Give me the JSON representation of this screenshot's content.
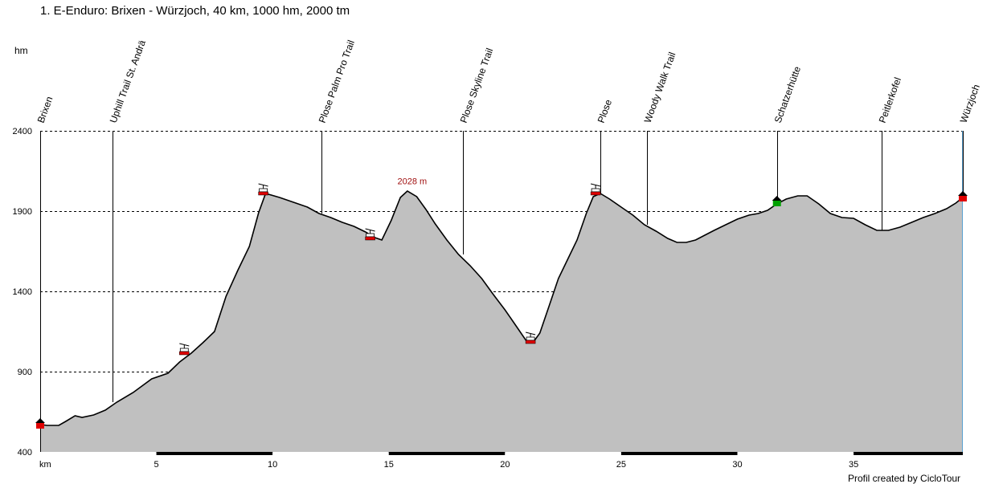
{
  "chart_data": {
    "type": "area",
    "title": "1. E-Enduro: Brixen - Würzjoch, 40 km, 1000 hm, 2000 tm",
    "ylabel": "hm",
    "xlabel": "km",
    "ylim": [
      400,
      2400
    ],
    "xlim": [
      0,
      39.7
    ],
    "y_ticks": [
      400,
      900,
      1400,
      1900,
      2400
    ],
    "x_ticks": [
      5,
      10,
      15,
      20,
      25,
      30,
      35
    ],
    "grid": true,
    "fill_color": "#c0c0c0",
    "line_color": "#000000",
    "x": [
      0,
      0.3,
      0.8,
      1.1,
      1.5,
      1.8,
      2.3,
      2.8,
      3.3,
      4.0,
      4.8,
      5.5,
      6.0,
      6.5,
      7.0,
      7.5,
      8.0,
      8.5,
      9.0,
      9.4,
      9.7,
      10.3,
      11.0,
      11.5,
      12.0,
      12.5,
      13.0,
      13.5,
      14.0,
      14.4,
      14.7,
      15.1,
      15.5,
      15.8,
      16.2,
      16.6,
      17.0,
      17.5,
      18.0,
      18.5,
      19.0,
      19.5,
      20.0,
      20.5,
      20.9,
      21.2,
      21.5,
      21.9,
      22.3,
      22.7,
      23.1,
      23.5,
      23.8,
      24.1,
      24.5,
      25.0,
      25.5,
      26.0,
      26.5,
      27.0,
      27.4,
      27.8,
      28.2,
      28.6,
      29.0,
      29.5,
      30.0,
      30.5,
      30.9,
      31.3,
      31.7,
      32.1,
      32.6,
      33.0,
      33.5,
      34.0,
      34.5,
      35.0,
      35.5,
      36.0,
      36.5,
      37.0,
      37.5,
      38.0,
      38.5,
      39.0,
      39.4,
      39.7
    ],
    "values": [
      570,
      565,
      565,
      590,
      625,
      615,
      630,
      660,
      710,
      770,
      855,
      890,
      960,
      1015,
      1080,
      1150,
      1370,
      1530,
      1680,
      1890,
      2010,
      1985,
      1950,
      1925,
      1885,
      1860,
      1830,
      1805,
      1770,
      1735,
      1720,
      1840,
      1985,
      2025,
      1990,
      1910,
      1820,
      1720,
      1630,
      1560,
      1480,
      1380,
      1285,
      1180,
      1095,
      1080,
      1140,
      1310,
      1480,
      1600,
      1720,
      1885,
      1990,
      2010,
      1975,
      1925,
      1875,
      1815,
      1775,
      1730,
      1705,
      1705,
      1720,
      1750,
      1780,
      1815,
      1850,
      1875,
      1885,
      1905,
      1945,
      1975,
      1995,
      1995,
      1945,
      1885,
      1860,
      1855,
      1815,
      1780,
      1780,
      1800,
      1830,
      1860,
      1885,
      1915,
      1950,
      1985
    ],
    "points_of_interest": [
      {
        "label": "Brixen",
        "km": 0
      },
      {
        "label": "Uphill Trail St. Andrä",
        "km": 3.1
      },
      {
        "label": "Plose Palm Pro Trail",
        "km": 12.1
      },
      {
        "label": "Plose Skyline Trail",
        "km": 18.2
      },
      {
        "label": "Plose",
        "km": 24.1
      },
      {
        "label": "Woody Walk Trail",
        "km": 26.1
      },
      {
        "label": "Schatzerhütte",
        "km": 31.7
      },
      {
        "label": "Peitlerkofel",
        "km": 36.2
      },
      {
        "label": "Würzjoch",
        "km": 39.7
      }
    ],
    "annotations": [
      {
        "text": "2028 m",
        "km": 15.8,
        "alt": 2028
      }
    ],
    "cable_cars": [
      {
        "km": 6.2,
        "alt": 1010
      },
      {
        "km": 9.6,
        "alt": 2005
      },
      {
        "km": 14.2,
        "alt": 1725
      },
      {
        "km": 21.1,
        "alt": 1080
      },
      {
        "km": 23.9,
        "alt": 2005
      }
    ],
    "markers": [
      {
        "type": "house-red",
        "km": 0,
        "alt": 570,
        "color": "#e00000"
      },
      {
        "type": "house-green",
        "km": 31.7,
        "alt": 1955,
        "color": "#00a000"
      },
      {
        "type": "house-red",
        "km": 39.7,
        "alt": 1985,
        "color": "#e00000"
      }
    ]
  },
  "footer": {
    "credit": "Profil created by CicloTour"
  }
}
